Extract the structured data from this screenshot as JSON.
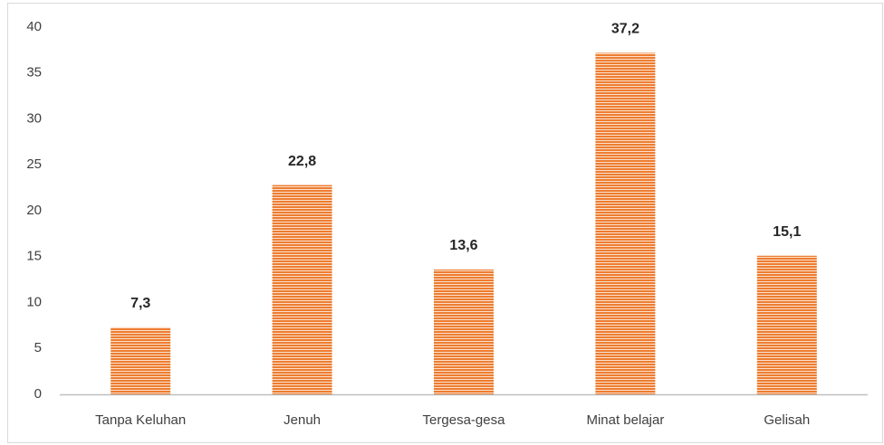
{
  "chart_data": {
    "type": "bar",
    "categories": [
      "Tanpa Keluhan",
      "Jenuh",
      "Tergesa-gesa",
      "Minat belajar",
      "Gelisah"
    ],
    "values": [
      7.3,
      22.8,
      13.6,
      37.2,
      15.1
    ],
    "value_labels": [
      "7,3",
      "22,8",
      "13,6",
      "37,2",
      "15,1"
    ],
    "color": "#ed7d31",
    "ylim": [
      0,
      40
    ],
    "yticks": [
      0,
      5,
      10,
      15,
      20,
      25,
      30,
      35,
      40
    ],
    "grid": false
  }
}
